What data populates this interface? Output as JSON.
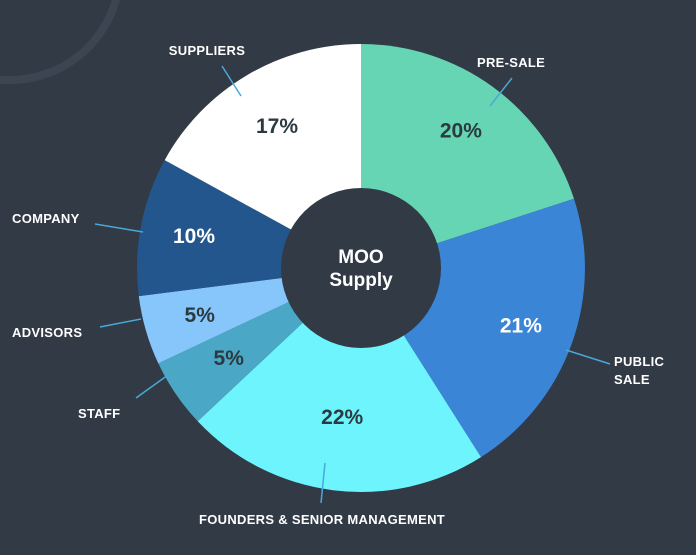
{
  "chart_data": {
    "type": "pie",
    "title": "",
    "center_label": [
      "MOO",
      "Supply"
    ],
    "unit": "%",
    "slices": [
      {
        "label": "PRE-SALE",
        "value": 20,
        "value_label": "20%",
        "color": "#66d5b4",
        "value_color": "#2c3a40"
      },
      {
        "label": "PUBLIC SALE",
        "value": 21,
        "value_label": "21%",
        "color": "#3a85d6",
        "value_color": "#ffffff"
      },
      {
        "label": "FOUNDERS & SENIOR MANAGEMENT",
        "value": 22,
        "value_label": "22%",
        "color": "#6ef4fc",
        "value_color": "#2c3a40"
      },
      {
        "label": "STAFF",
        "value": 5,
        "value_label": "5%",
        "color": "#4aa8c6",
        "value_color": "#2c3a40"
      },
      {
        "label": "ADVISORS",
        "value": 5,
        "value_label": "5%",
        "color": "#86c6fb",
        "value_color": "#2c3a40"
      },
      {
        "label": "COMPANY",
        "value": 10,
        "value_label": "10%",
        "color": "#24568e",
        "value_color": "#ffffff"
      },
      {
        "label": "SUPPLIERS",
        "value": 17,
        "value_label": "17%",
        "color": "#ffffff",
        "value_color": "#2c3a40"
      }
    ],
    "legend": "none",
    "leader_color": "#4aa8d8",
    "background_color": "#323a45"
  }
}
